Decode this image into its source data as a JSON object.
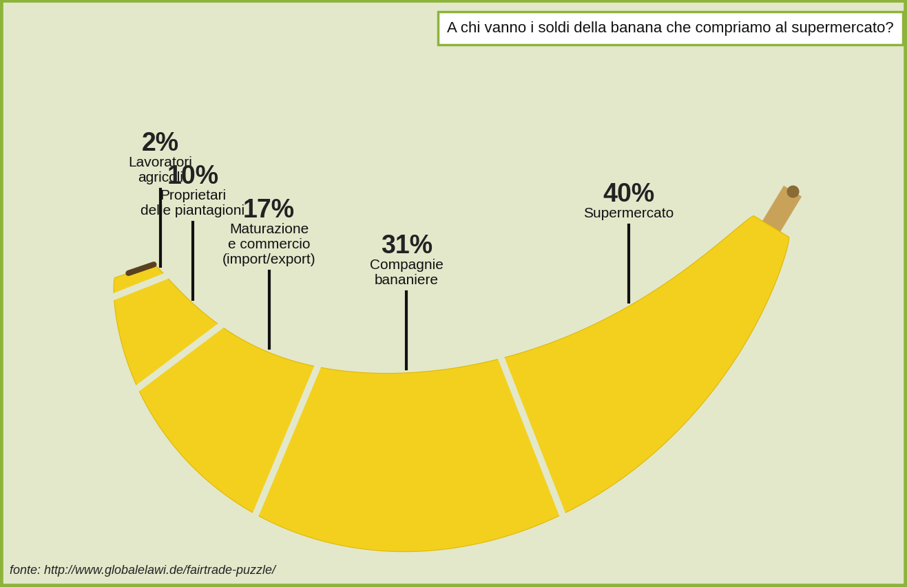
{
  "chart_data": {
    "type": "segments",
    "title": "A chi vanno i soldi della banana che compriamo al supermercato?",
    "categories": [
      "Lavoratori\nagricoli",
      "Proprietari\ndelle piantagioni",
      "Maturazione\ne commercio\n(import/export)",
      "Compagnie\nbananiere",
      "Supermercato"
    ],
    "values": [
      2,
      10,
      17,
      31,
      40
    ],
    "value_labels": [
      "2%",
      "10%",
      "17%",
      "31%",
      "40%"
    ],
    "data_labels": true,
    "color": "#f3d01e",
    "source": "fonte: http://www.globalelawi.de/fairtrade-puzzle/"
  }
}
